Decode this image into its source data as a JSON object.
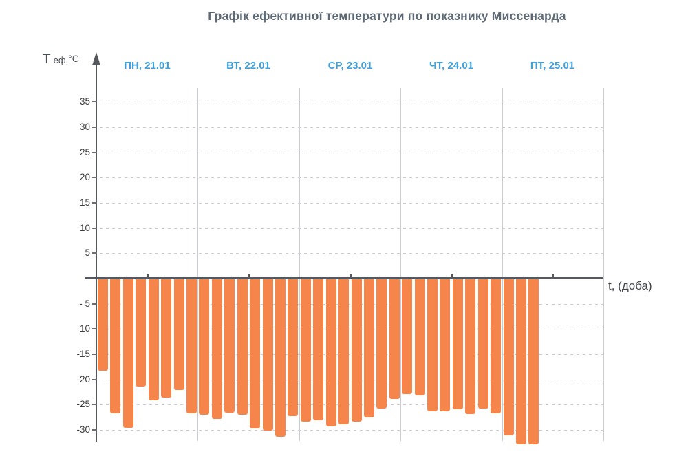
{
  "title": "Графік ефективної температури по показнику Миссенарда",
  "y_axis_label": {
    "symbol": "Т",
    "subscript": "еф,",
    "unit": "°С"
  },
  "x_axis_label": "t, (доба)",
  "colors": {
    "bar": "#F5854B",
    "day_label": "#3FA2DC",
    "axis": "#55585C",
    "grid": "#C9CCD0",
    "title": "#5D6975",
    "tick_label": "#3E3E3E",
    "background": "#FFFFFF"
  },
  "chart_data": {
    "type": "bar",
    "title": "Графік ефективної температури по показнику Миссенарда",
    "xlabel": "t, (доба)",
    "ylabel": "Т еф,°С",
    "categories": [
      "ПН, 21.01",
      "ВТ, 22.01",
      "СР, 23.01",
      "ЧТ, 24.01",
      "ПТ, 25.01"
    ],
    "points_per_day": 8,
    "values": [
      -18.3,
      -26.7,
      -29.6,
      -21.4,
      -24.2,
      -23.6,
      -22.1,
      -26.7,
      -27.0,
      -27.8,
      -26.6,
      -27.0,
      -29.7,
      -30.1,
      -31.4,
      -27.3,
      -28.3,
      -28.1,
      -29.3,
      -28.9,
      -28.4,
      -27.5,
      -25.8,
      -23.8,
      -22.9,
      -23.2,
      -26.3,
      -26.3,
      -25.9,
      -26.8,
      -25.8,
      -26.7,
      -31.1,
      -32.9,
      -32.9
    ],
    "yticks": [
      35,
      30,
      25,
      20,
      15,
      10,
      5,
      -5,
      -10,
      -15,
      -20,
      -25,
      -30
    ],
    "ytick_labels": [
      "35",
      "30",
      "25",
      "20",
      "15",
      "10",
      "5",
      "- 5",
      "-10",
      "-15",
      "-20",
      "-25",
      "-30"
    ],
    "ylim": [
      -35,
      38
    ],
    "bar_color": "#F5854B",
    "grid": {
      "horizontal": "dashed at every 5 °C",
      "vertical": "solid at day boundaries"
    },
    "legend_position": "none"
  }
}
